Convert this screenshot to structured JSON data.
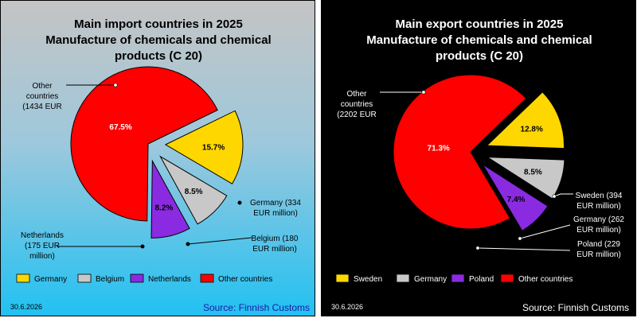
{
  "colors": {
    "red": "#ff0000",
    "gold": "#ffd700",
    "silver": "#c8c8c8",
    "purple": "#8a2be2",
    "source_import": "#1a1aa6",
    "source_export": "#ffffff"
  },
  "chart_data": [
    {
      "type": "pie",
      "title": [
        "Main import countries in 2025",
        "Manufacture of chemicals and chemical",
        "products (C 20)"
      ],
      "background": "grey-to-cyan gradient",
      "slices": [
        {
          "name": "Germany",
          "value": 15.7,
          "pct_label": "15.7%",
          "color": "#ffd700",
          "exploded": true,
          "callout": [
            "Germany (334",
            "EUR million)"
          ]
        },
        {
          "name": "Belgium",
          "value": 8.5,
          "pct_label": "8.5%",
          "color": "#c8c8c8",
          "exploded": true,
          "callout": [
            "Belgium (180",
            "EUR million)"
          ]
        },
        {
          "name": "Netherlands",
          "value": 8.2,
          "pct_label": "8.2%",
          "color": "#8a2be2",
          "exploded": true,
          "callout": [
            "Netherlands",
            "(175 EUR",
            "million)"
          ]
        },
        {
          "name": "Other countries",
          "value": 67.5,
          "pct_label": "67.5%",
          "color": "#ff0000",
          "exploded": false,
          "callout": [
            "Other",
            "countries",
            "(1434 EUR"
          ]
        }
      ],
      "legend": [
        "Germany",
        "Belgium",
        "Netherlands",
        "Other countries"
      ],
      "date": "30.6.2026",
      "source": "Source: Finnish Customs"
    },
    {
      "type": "pie",
      "title": [
        "Main export countries in 2025",
        "Manufacture of chemicals and chemical",
        "products (C 20)"
      ],
      "background": "black",
      "slices": [
        {
          "name": "Sweden",
          "value": 12.8,
          "pct_label": "12.8%",
          "color": "#ffd700",
          "exploded": true,
          "callout": [
            "Sweden (394",
            "EUR million)"
          ]
        },
        {
          "name": "Germany",
          "value": 8.5,
          "pct_label": "8.5%",
          "color": "#c8c8c8",
          "exploded": true,
          "callout": [
            "Germany (262",
            "EUR million)"
          ]
        },
        {
          "name": "Poland",
          "value": 7.4,
          "pct_label": "7.4%",
          "color": "#8a2be2",
          "exploded": true,
          "callout": [
            "Poland (229",
            "EUR million)"
          ]
        },
        {
          "name": "Other countries",
          "value": 71.3,
          "pct_label": "71.3%",
          "color": "#ff0000",
          "exploded": false,
          "callout": [
            "Other",
            "countries",
            "(2202 EUR"
          ]
        }
      ],
      "legend": [
        "Sweden",
        "Germany",
        "Poland",
        "Other countries"
      ],
      "date": "30.6.2026",
      "source": "Source: Finnish Customs"
    }
  ]
}
